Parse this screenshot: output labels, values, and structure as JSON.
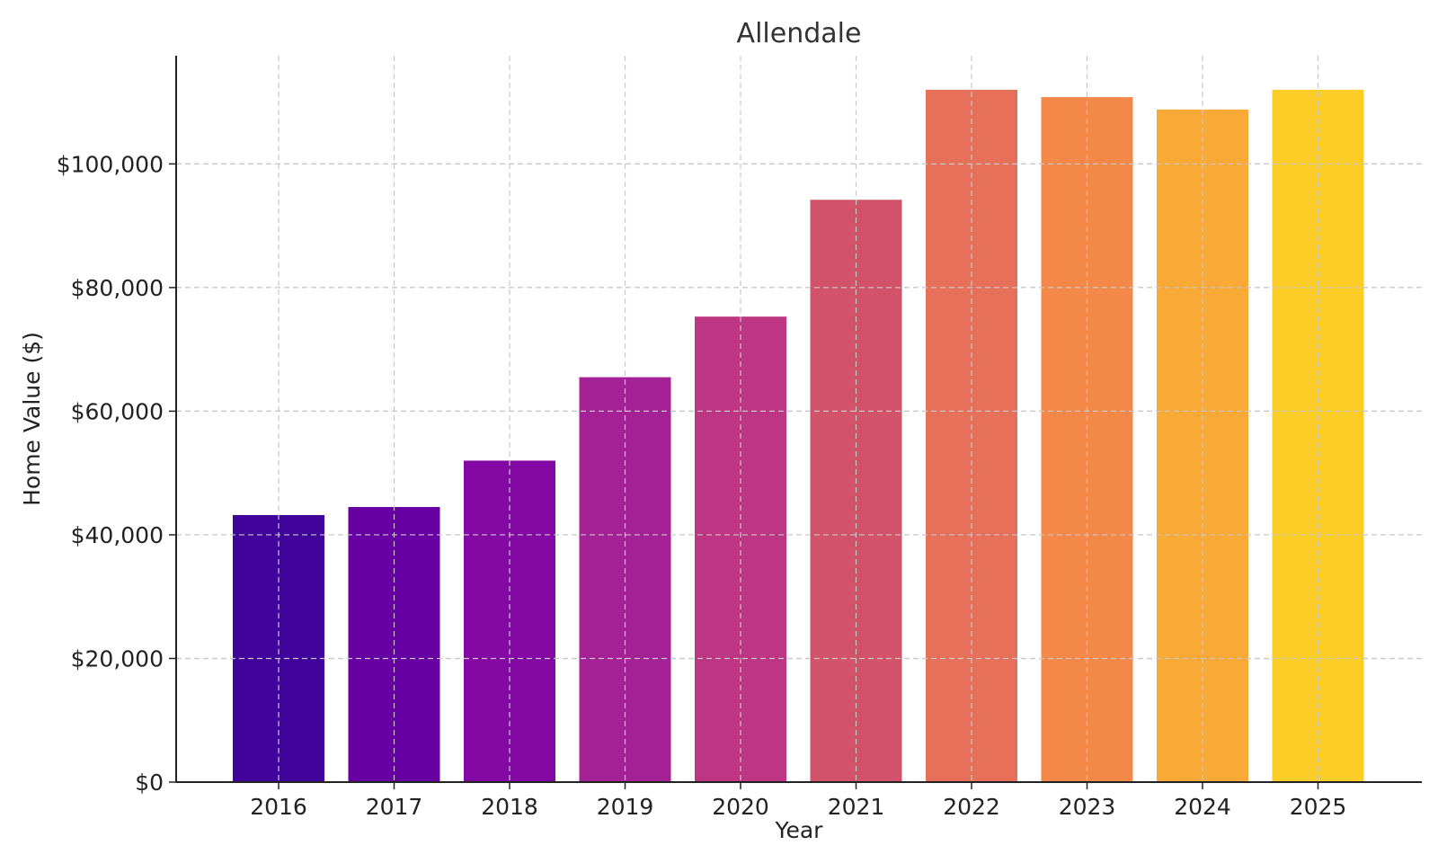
{
  "chart_data": {
    "type": "bar",
    "title": "Allendale",
    "xlabel": "Year",
    "ylabel": "Home Value ($)",
    "categories": [
      "2016",
      "2017",
      "2018",
      "2019",
      "2020",
      "2021",
      "2022",
      "2023",
      "2024",
      "2025"
    ],
    "values": [
      43200,
      44500,
      52000,
      65500,
      75300,
      94200,
      112000,
      110800,
      108800,
      112000
    ],
    "colors": [
      "#40049a",
      "#6600a3",
      "#8408a4",
      "#a42196",
      "#be3683",
      "#d25369",
      "#e6705a",
      "#f48848",
      "#f9a936",
      "#fbcd26"
    ],
    "ylim": [
      0,
      117500
    ],
    "yticks": [
      0,
      20000,
      40000,
      60000,
      80000,
      100000
    ],
    "ytick_labels": [
      "$0",
      "$20,000",
      "$40,000",
      "$60,000",
      "$80,000",
      "$100,000"
    ],
    "grid": true,
    "legend": "none"
  }
}
